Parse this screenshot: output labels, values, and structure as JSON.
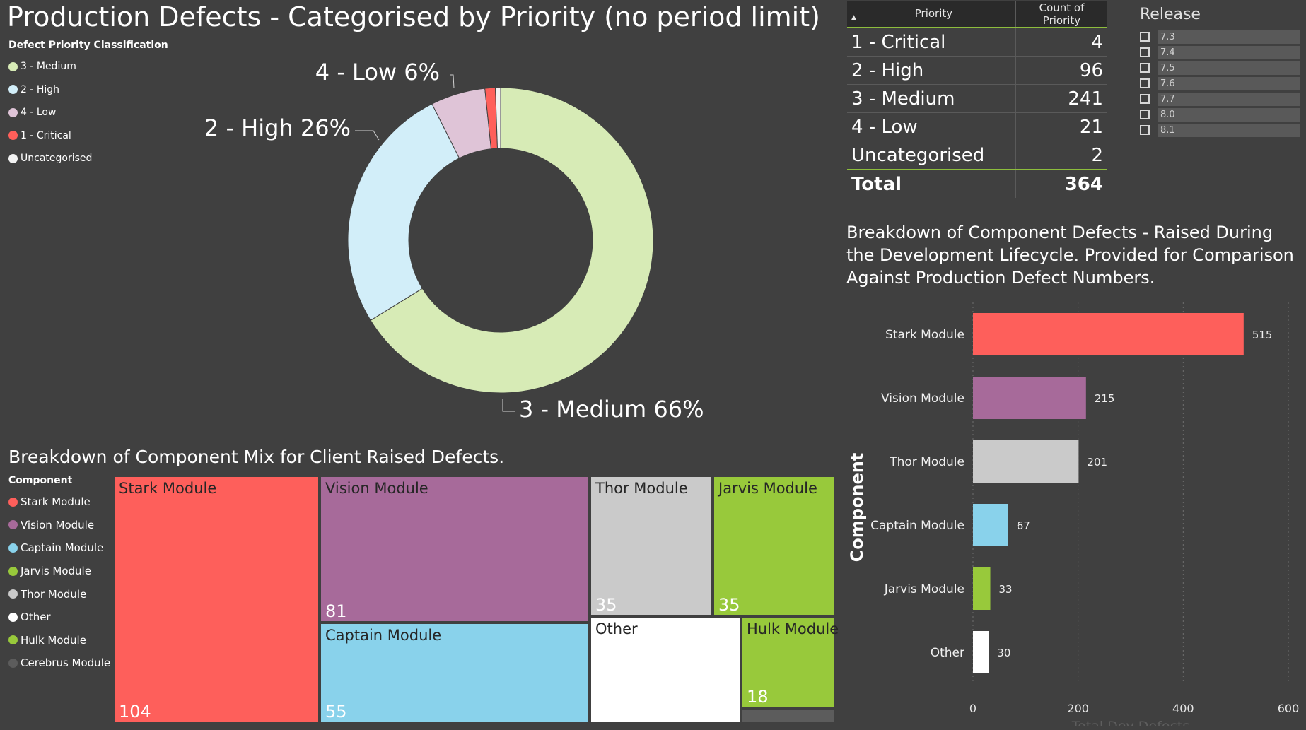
{
  "header": {
    "title": "Production Defects - Categorised by Priority (no period limit)"
  },
  "donut_legend": {
    "title": "Defect Priority Classification",
    "items": [
      {
        "label": "3 - Medium",
        "color": "#d7ebb6"
      },
      {
        "label": "2 - High",
        "color": "#d2eef9"
      },
      {
        "label": "4 - Low",
        "color": "#dfc4d7"
      },
      {
        "label": "1 - Critical",
        "color": "#ff5f5a"
      },
      {
        "label": "Uncategorised",
        "color": "#f2f2f2"
      }
    ]
  },
  "priority_table": {
    "headers": [
      "Priority",
      "Count of Priority"
    ],
    "rows": [
      {
        "priority": "1 - Critical",
        "count": "4"
      },
      {
        "priority": "2 - High",
        "count": "96"
      },
      {
        "priority": "3 - Medium",
        "count": "241"
      },
      {
        "priority": "4 - Low",
        "count": "21"
      },
      {
        "priority": "Uncategorised",
        "count": "2"
      }
    ],
    "total_label": "Total",
    "total_value": "364"
  },
  "release_slicer": {
    "title": "Release",
    "options": [
      "7.3",
      "7.4",
      "7.5",
      "7.6",
      "7.7",
      "8.0",
      "8.1"
    ]
  },
  "treemap": {
    "title": "Breakdown of Component Mix for Client Raised Defects.",
    "legend_title": "Component",
    "legend": [
      {
        "label": "Stark Module",
        "color": "#fe5f5b"
      },
      {
        "label": "Vision Module",
        "color": "#a76a9a"
      },
      {
        "label": "Captain Module",
        "color": "#89d2eb"
      },
      {
        "label": "Jarvis Module",
        "color": "#98c93b"
      },
      {
        "label": "Thor Module",
        "color": "#cacaca"
      },
      {
        "label": "Other",
        "color": "#ffffff"
      },
      {
        "label": "Hulk Module",
        "color": "#98c93b"
      },
      {
        "label": "Cerebrus Module",
        "color": "#5c5c5c"
      }
    ]
  },
  "bar_chart": {
    "title": "Breakdown of Component Defects - Raised During the Development Lifecycle. Provided for Comparison Against Production Defect Numbers."
  },
  "chart_data": [
    {
      "type": "pie",
      "subtype": "donut",
      "title": "Production Defects - Categorised by Priority (no period limit)",
      "legend_title": "Defect Priority Classification",
      "legend_position": "top-left",
      "slices": [
        {
          "label": "3 - Medium",
          "value": 241,
          "percent": 66,
          "color": "#d7ebb6"
        },
        {
          "label": "2 - High",
          "value": 96,
          "percent": 26,
          "color": "#d2eef9"
        },
        {
          "label": "4 - Low",
          "value": 21,
          "percent": 6,
          "color": "#dfc4d7"
        },
        {
          "label": "1 - Critical",
          "value": 4,
          "color": "#ff5f5a"
        },
        {
          "label": "Uncategorised",
          "value": 2,
          "color": "#f2f2f2"
        }
      ],
      "data_labels": [
        "4 - Low 6%",
        "2 - High 26%",
        "3 - Medium 66%"
      ]
    },
    {
      "type": "treemap",
      "title": "Breakdown of Component Mix for Client Raised Defects.",
      "legend_title": "Component",
      "legend_position": "left",
      "items": [
        {
          "label": "Stark Module",
          "value": 104,
          "color": "#fe5f5b",
          "show_label": true,
          "show_value": true
        },
        {
          "label": "Vision Module",
          "value": 81,
          "color": "#a76a9a",
          "show_label": true,
          "show_value": true
        },
        {
          "label": "Captain Module",
          "value": 55,
          "color": "#89d2eb",
          "show_label": true,
          "show_value": true
        },
        {
          "label": "Thor Module",
          "value": 35,
          "color": "#cacaca",
          "show_label": true,
          "show_value": true
        },
        {
          "label": "Jarvis Module",
          "value": 35,
          "color": "#98c93b",
          "show_label": true,
          "show_value": true
        },
        {
          "label": "Other",
          "value": null,
          "color": "#ffffff",
          "show_label": true,
          "show_value": false
        },
        {
          "label": "Hulk Module",
          "value": 18,
          "color": "#98c93b",
          "show_label": true,
          "show_value": true
        },
        {
          "label": "Cerebrus Module",
          "value": null,
          "color": "#5c5c5c",
          "show_label": false,
          "show_value": false
        }
      ]
    },
    {
      "type": "bar",
      "orientation": "horizontal",
      "title": "Breakdown of Component Defects - Raised During the Development Lifecycle. Provided for Comparison Against Production Defect Numbers.",
      "xlabel": "Total Dev Defects",
      "ylabel": "Component",
      "xlim": [
        0,
        600
      ],
      "xticks": [
        0,
        200,
        400,
        600
      ],
      "grid": true,
      "categories": [
        "Stark Module",
        "Vision Module",
        "Thor Module",
        "Captain Module",
        "Jarvis Module",
        "Other"
      ],
      "values": [
        515,
        215,
        201,
        67,
        33,
        30
      ],
      "colors": [
        "#fe5f5b",
        "#a76a9a",
        "#cacaca",
        "#89d2eb",
        "#98c93b",
        "#ffffff"
      ]
    }
  ]
}
